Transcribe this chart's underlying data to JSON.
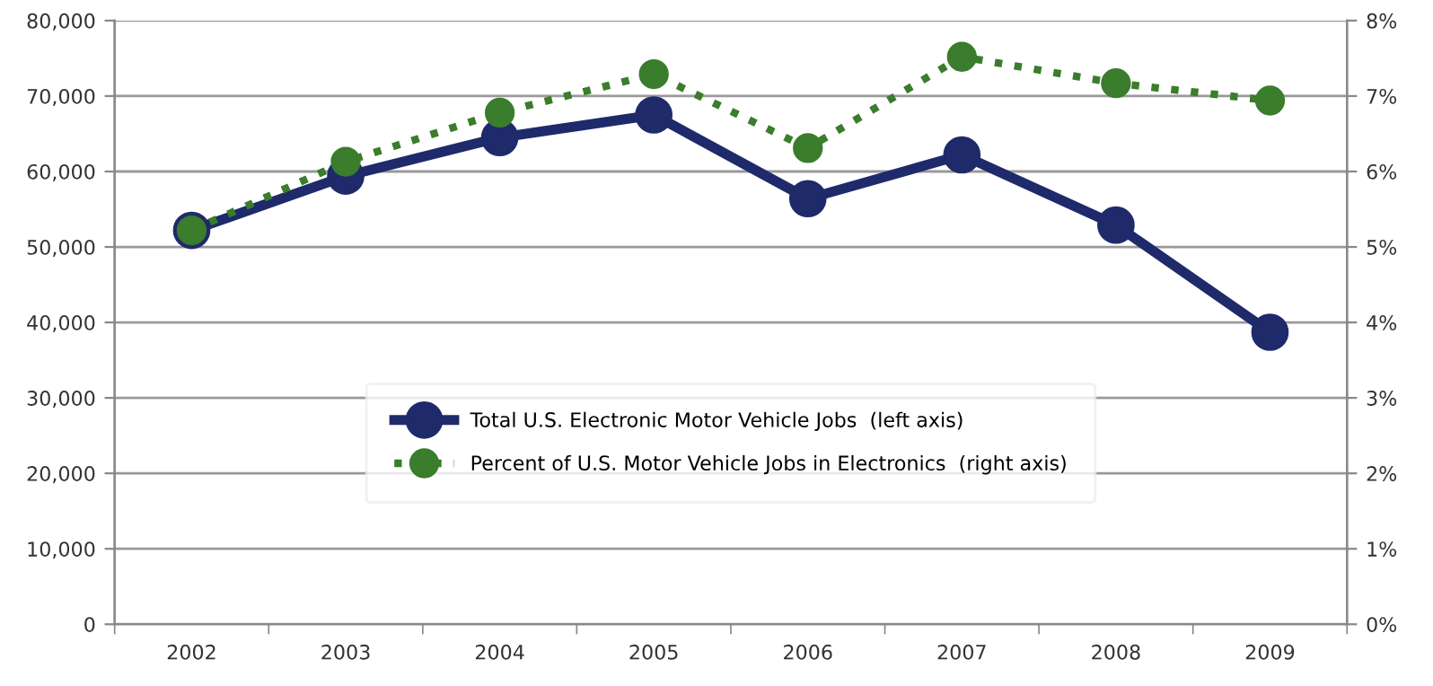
{
  "chart_data": {
    "type": "line",
    "categories": [
      "2002",
      "2003",
      "2004",
      "2005",
      "2006",
      "2007",
      "2008",
      "2009"
    ],
    "series": [
      {
        "name": "Total U.S. Electronic Motor Vehicle Jobs  (left axis)",
        "color": "#1f2a6b",
        "line_style": "solid",
        "values": [
          52200,
          59400,
          64500,
          67500,
          56400,
          62200,
          52900,
          38700
        ]
      },
      {
        "name": "Percent of U.S. Motor Vehicle Jobs in Electronics  (right axis)",
        "color": "#3a7d2c",
        "line_style": "dotted",
        "axis": "y2",
        "values": [
          5.22,
          6.13,
          6.78,
          7.29,
          6.31,
          7.52,
          7.17,
          6.94
        ]
      }
    ],
    "ylim": [
      0,
      80000
    ],
    "yticks": [
      0,
      {
        "value": 10000,
        "label": "10,000"
      },
      {
        "value": 20000,
        "label": "20,000"
      },
      {
        "value": 30000,
        "label": "30,000"
      },
      {
        "value": 40000,
        "label": "40,000"
      },
      {
        "value": 50000,
        "label": "50,000"
      },
      {
        "value": 60000,
        "label": "60,000"
      },
      {
        "value": 70000,
        "label": "70,000"
      },
      {
        "value": 80000,
        "label": "80,000"
      }
    ],
    "y2lim": [
      0,
      8
    ],
    "y2ticks": [
      {
        "value": 0,
        "label": "0%"
      },
      {
        "value": 1,
        "label": "1%"
      },
      {
        "value": 2,
        "label": "2%"
      },
      {
        "value": 3,
        "label": "3%"
      },
      {
        "value": 4,
        "label": "4%"
      },
      {
        "value": 5,
        "label": "5%"
      },
      {
        "value": 6,
        "label": "6%"
      },
      {
        "value": 7,
        "label": "7%"
      },
      {
        "value": 8,
        "label": "8%"
      }
    ],
    "grid": "y",
    "legend": "center",
    "marker": "circle"
  }
}
